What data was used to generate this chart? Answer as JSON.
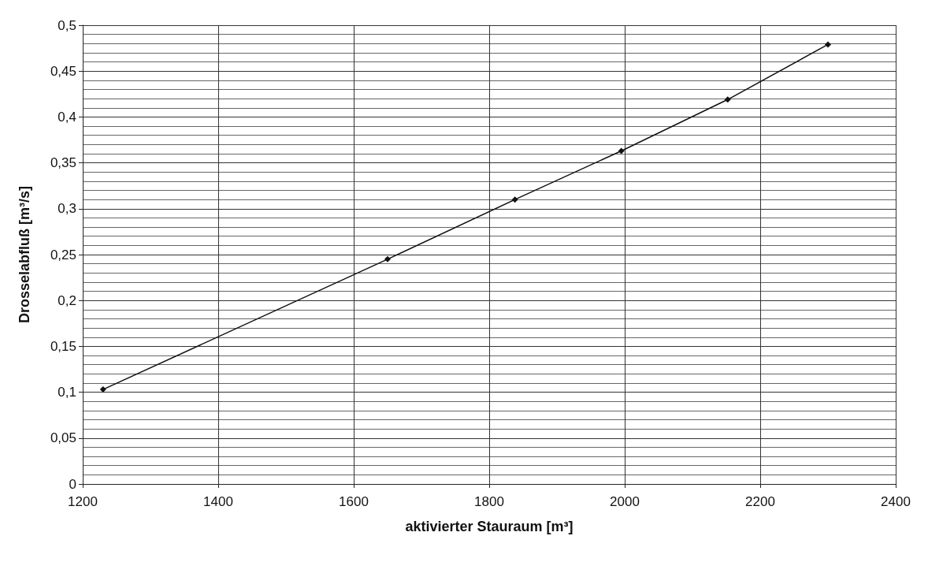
{
  "chart_data": {
    "type": "line",
    "xlabel": "aktivierter Stauraum [m³]",
    "ylabel": "Drosselabfluß [m³/s]",
    "x": [
      1230,
      1650,
      1838,
      1995,
      2152,
      2300
    ],
    "series": [
      {
        "color": "#111111",
        "values": [
          0.103,
          0.245,
          0.31,
          0.363,
          0.419,
          0.479
        ]
      }
    ],
    "xlim": [
      1200,
      2400
    ],
    "xticks": [
      1200,
      1400,
      1600,
      1800,
      2000,
      2200,
      2400
    ],
    "ylim": [
      0,
      0.5
    ],
    "yticks": [
      {
        "value": 0,
        "label": "0"
      },
      {
        "value": 0.05,
        "label": "0,05"
      },
      {
        "value": 0.1,
        "label": "0,1"
      },
      {
        "value": 0.15,
        "label": "0,15"
      },
      {
        "value": 0.2,
        "label": "0,2"
      },
      {
        "value": 0.25,
        "label": "0,25"
      },
      {
        "value": 0.3,
        "label": "0,3"
      },
      {
        "value": 0.35,
        "label": "0,35"
      },
      {
        "value": 0.4,
        "label": "0,4"
      },
      {
        "value": 0.45,
        "label": "0,45"
      },
      {
        "value": 0.5,
        "label": "0,5"
      }
    ],
    "grid": true,
    "marker": "diamond",
    "line_style": "solid"
  }
}
